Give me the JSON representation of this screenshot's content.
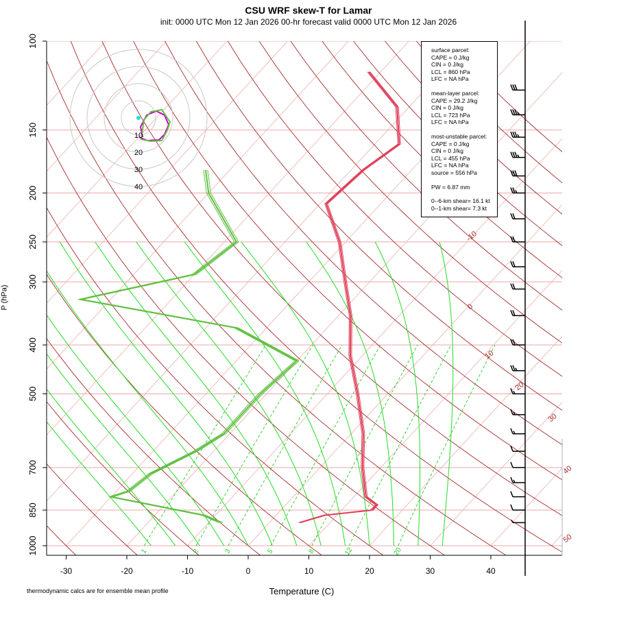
{
  "header": {
    "title": "CSU WRF skew-T for Lamar",
    "subtitle": "init: 0000 UTC Mon 12 Jan 2026     00-hr forecast valid 0000 UTC Mon 12 Jan 2026"
  },
  "footnote": "thermodynamic calcs are for ensemble mean profile",
  "stats": {
    "surface_title": "surface parcel:",
    "surface_cape": "CAPE = 0 J/kg",
    "surface_cin": "CIN = 0 J/kg",
    "surface_lcl": "LCL = 860 hPa",
    "surface_lfc": "LFC = NA hPa",
    "ml_title": "mean-layer parcel:",
    "ml_cape": "CAPE = 29.2 J/kg",
    "ml_cin": "CIN = 0 J/kg",
    "ml_lcl": "LCL = 723 hPa",
    "ml_lfc": "LFC = NA hPa",
    "mu_title": "most-unstable parcel:",
    "mu_cape": "CAPE = 0 J/kg",
    "mu_cin": "CIN = 0 J/kg",
    "mu_lcl": "LCL = 455 hPa",
    "mu_lfc": "LFC = NA hPa",
    "mu_source": "source = 556 hPa",
    "pw": "PW =  6.87 mm",
    "shear6": "0--6-km shear= 16.1 kt",
    "shear1": "0--1-km shear= 7.3 kt"
  },
  "colors": {
    "temperature": "#e0405a",
    "dewpoint": "#60c040",
    "dry_adiabat": "#a52a2a",
    "moist_adiabat": "#22dd22",
    "mixing_ratio": "#22cc22",
    "isotherm": "#e9b0b0",
    "isobar": "#e8a8a8",
    "hodograph_ring": "#c8c8c8"
  },
  "chart_data": {
    "type": "skew-T log-P",
    "title": "CSU WRF skew-T for Lamar",
    "xlabel": "Temperature (C)",
    "ylabel": "P (hPa)",
    "xlim": [
      -33,
      44
    ],
    "ylim": [
      1000,
      100
    ],
    "x_ticks": [
      -30,
      -20,
      -10,
      0,
      10,
      20,
      30,
      40
    ],
    "pressure_ticks": [
      100,
      150,
      200,
      250,
      300,
      400,
      500,
      700,
      850,
      1000
    ],
    "isotherm_labels": [
      -10,
      0,
      10,
      20,
      30,
      40,
      50
    ],
    "mixing_ratio_labels": [
      1,
      2,
      3,
      5,
      8,
      12,
      20
    ],
    "mixing_ratio_values": [
      1,
      2,
      3,
      5,
      8,
      12,
      20
    ],
    "hodograph_ring_labels": [
      10,
      20,
      30,
      40
    ],
    "temperature_profile": [
      {
        "p": 900,
        "t": 5
      },
      {
        "p": 870,
        "t": 8
      },
      {
        "p": 850,
        "t": 15
      },
      {
        "p": 830,
        "t": 15
      },
      {
        "p": 800,
        "t": 12
      },
      {
        "p": 700,
        "t": 7
      },
      {
        "p": 600,
        "t": 2
      },
      {
        "p": 500,
        "t": -5
      },
      {
        "p": 420,
        "t": -12
      },
      {
        "p": 350,
        "t": -18
      },
      {
        "p": 300,
        "t": -24
      },
      {
        "p": 250,
        "t": -31
      },
      {
        "p": 210,
        "t": -39
      },
      {
        "p": 180,
        "t": -38
      },
      {
        "p": 160,
        "t": -36
      },
      {
        "p": 135,
        "t": -42
      },
      {
        "p": 115,
        "t": -52
      }
    ],
    "dewpoint_profile": [
      {
        "p": 900,
        "t": -8
      },
      {
        "p": 870,
        "t": -12
      },
      {
        "p": 800,
        "t": -30
      },
      {
        "p": 780,
        "t": -28
      },
      {
        "p": 720,
        "t": -27
      },
      {
        "p": 650,
        "t": -23
      },
      {
        "p": 600,
        "t": -21
      },
      {
        "p": 500,
        "t": -21
      },
      {
        "p": 430,
        "t": -20
      },
      {
        "p": 370,
        "t": -35
      },
      {
        "p": 325,
        "t": -65
      },
      {
        "p": 290,
        "t": -50
      },
      {
        "p": 250,
        "t": -48
      },
      {
        "p": 200,
        "t": -60
      },
      {
        "p": 180,
        "t": -64
      }
    ],
    "wind_barb_levels": [
      125,
      140,
      155,
      170,
      185,
      200,
      225,
      250,
      280,
      310,
      350,
      400,
      450,
      500,
      550,
      600,
      650,
      700,
      750,
      800,
      850,
      900
    ],
    "wind_speeds_kt": [
      30,
      35,
      35,
      35,
      30,
      25,
      20,
      20,
      20,
      20,
      20,
      20,
      25,
      15,
      15,
      15,
      10,
      10,
      15,
      10,
      10,
      5
    ]
  },
  "icons": {
    "wind_barbs": "wind-barb-icon"
  }
}
